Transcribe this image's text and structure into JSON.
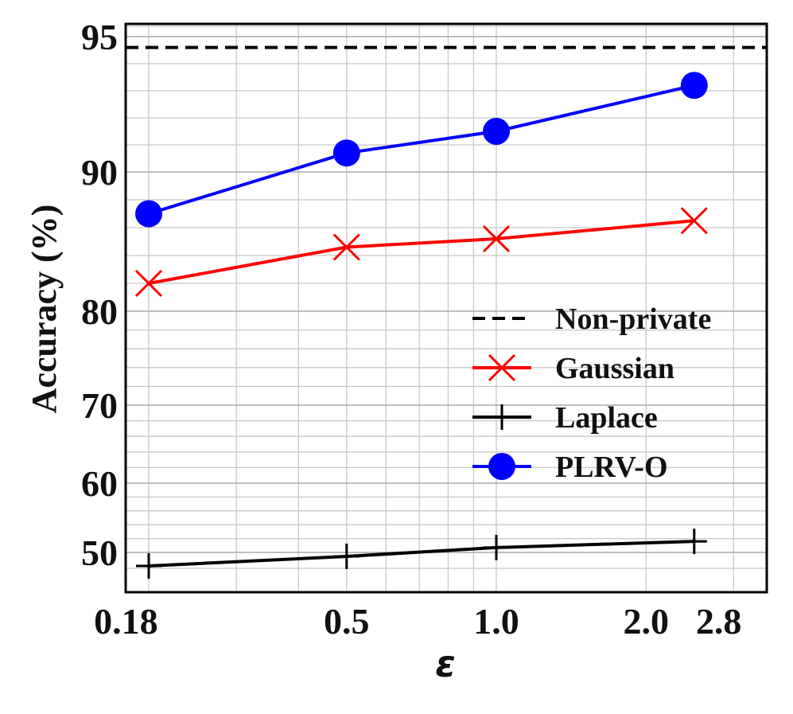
{
  "chart_data": {
    "type": "line",
    "xlabel": "ε",
    "ylabel": "Accuracy (%)",
    "x": [
      0.2,
      0.5,
      1.0,
      2.5
    ],
    "xticks": [
      {
        "value": 0.18,
        "label": "0.18"
      },
      {
        "value": 0.5,
        "label": "0.5"
      },
      {
        "value": 1.0,
        "label": "1.0"
      },
      {
        "value": 2.0,
        "label": "2.0"
      },
      {
        "value": 2.8,
        "label": "2.8"
      }
    ],
    "yticks": [
      {
        "value": 50,
        "label": "50"
      },
      {
        "value": 60,
        "label": "60"
      },
      {
        "value": 70,
        "label": "70"
      },
      {
        "value": 80,
        "label": "80"
      },
      {
        "value": 90,
        "label": "90"
      },
      {
        "value": 95,
        "label": "95"
      }
    ],
    "xscale": "log",
    "yscale": "nonlinear",
    "xlim": [
      0.165,
      4.0
    ],
    "ylim": [
      47,
      96
    ],
    "grid": true,
    "legend_position": "lower-right",
    "series": [
      {
        "name": "Non-private",
        "color": "#000000",
        "style": "dashed",
        "marker": "none",
        "values": [
          94.6,
          94.6,
          94.6,
          94.6
        ]
      },
      {
        "name": "Gaussian",
        "color": "#ff0000",
        "style": "solid",
        "marker": "x",
        "values": [
          82.0,
          84.6,
          85.2,
          86.5
        ]
      },
      {
        "name": "Laplace",
        "color": "#000000",
        "style": "solid",
        "marker": "+",
        "values": [
          48.3,
          49.5,
          50.7,
          51.6
        ]
      },
      {
        "name": "PLRV-O",
        "color": "#0000ff",
        "style": "solid",
        "marker": "o",
        "values": [
          87.0,
          90.7,
          91.5,
          93.2
        ]
      }
    ]
  }
}
